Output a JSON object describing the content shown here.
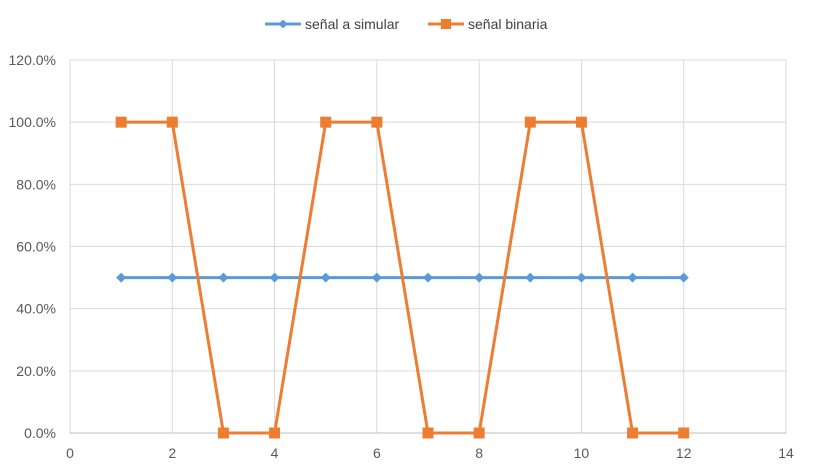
{
  "chart_data": {
    "type": "line",
    "title": "",
    "xlabel": "",
    "ylabel": "",
    "xlim": [
      0,
      14
    ],
    "ylim": [
      0,
      1.2
    ],
    "x_ticks": [
      0,
      2,
      4,
      6,
      8,
      10,
      12,
      14
    ],
    "x_tick_labels": [
      "0",
      "2",
      "4",
      "6",
      "8",
      "10",
      "12",
      "14"
    ],
    "y_ticks": [
      0,
      0.2,
      0.4,
      0.6,
      0.8,
      1.0,
      1.2
    ],
    "y_tick_labels": [
      "0.0%",
      "20.0%",
      "40.0%",
      "60.0%",
      "80.0%",
      "100.0%",
      "120.0%"
    ],
    "grid": true,
    "legend_position": "top",
    "x": [
      1,
      2,
      3,
      4,
      5,
      6,
      7,
      8,
      9,
      10,
      11,
      12
    ],
    "series": [
      {
        "name": "señal a simular",
        "color": "#5B9BD5",
        "marker": "diamond",
        "values": [
          0.5,
          0.5,
          0.5,
          0.5,
          0.5,
          0.5,
          0.5,
          0.5,
          0.5,
          0.5,
          0.5,
          0.5
        ]
      },
      {
        "name": "señal binaria",
        "color": "#ED7D31",
        "marker": "square",
        "values": [
          1,
          1,
          0,
          0,
          1,
          1,
          0,
          0,
          1,
          1,
          0,
          0
        ]
      }
    ]
  }
}
